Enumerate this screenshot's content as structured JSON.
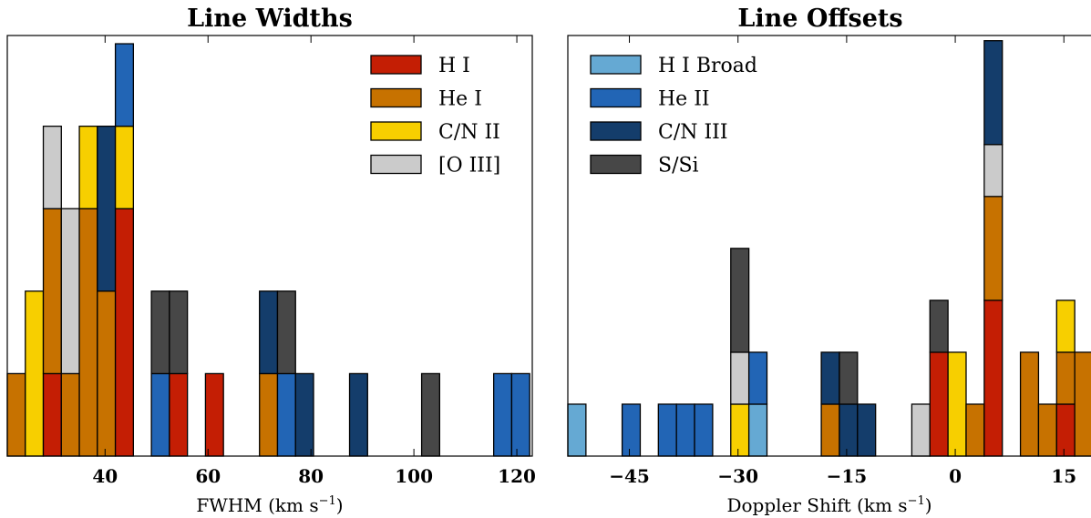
{
  "chart_data": [
    {
      "type": "bar",
      "stacked": true,
      "title": "Line Widths",
      "xlabel_main": "FWHM (km s",
      "xlabel_sup": "−1",
      "xlabel_end": ")",
      "xlim": [
        21,
        123
      ],
      "ylim": [
        0,
        5.1
      ],
      "bin_width": 3.5,
      "xticks": [
        40,
        60,
        80,
        100,
        120
      ],
      "legend_position": "upper-right",
      "series": [
        {
          "name": "H I",
          "color": "#c41e04"
        },
        {
          "name": "He I",
          "color": "#c77200"
        },
        {
          "name": "C/N II",
          "color": "#f7cf00"
        },
        {
          "name": "[O III]",
          "color": "#cbcbcb"
        },
        {
          "name": "",
          "color": "#2265b5"
        },
        {
          "name": "",
          "color": "#143d6b"
        },
        {
          "name": "",
          "color": "#474747"
        }
      ],
      "bins": [
        {
          "x": 21.0,
          "stack": [
            [
              "He I",
              1
            ]
          ]
        },
        {
          "x": 24.5,
          "stack": [
            [
              "C/N II",
              2
            ]
          ]
        },
        {
          "x": 28.0,
          "stack": [
            [
              "H I",
              1
            ],
            [
              "He I",
              2
            ],
            [
              "[O III]",
              1
            ]
          ]
        },
        {
          "x": 31.5,
          "stack": [
            [
              "He I",
              1
            ],
            [
              "[O III]",
              2
            ]
          ]
        },
        {
          "x": 35.0,
          "stack": [
            [
              "He I",
              3
            ],
            [
              "C/N II",
              1
            ]
          ]
        },
        {
          "x": 38.5,
          "stack": [
            [
              "He I",
              2
            ],
            [
              "S/Si-navy",
              2
            ]
          ]
        },
        {
          "x": 42.0,
          "stack": [
            [
              "H I",
              3
            ],
            [
              "C/N II",
              1
            ],
            [
              "blue",
              1
            ]
          ]
        },
        {
          "x": 49.0,
          "stack": [
            [
              "blue",
              1
            ],
            [
              "grey",
              1
            ]
          ]
        },
        {
          "x": 52.5,
          "stack": [
            [
              "H I",
              1
            ],
            [
              "grey",
              1
            ]
          ]
        },
        {
          "x": 59.5,
          "stack": [
            [
              "H I",
              1
            ]
          ]
        },
        {
          "x": 70.0,
          "stack": [
            [
              "He I",
              1
            ],
            [
              "navy",
              1
            ]
          ]
        },
        {
          "x": 73.5,
          "stack": [
            [
              "blue",
              1
            ],
            [
              "grey",
              1
            ]
          ]
        },
        {
          "x": 77.0,
          "stack": [
            [
              "navy",
              1
            ]
          ]
        },
        {
          "x": 87.5,
          "stack": [
            [
              "navy",
              1
            ]
          ]
        },
        {
          "x": 101.5,
          "stack": [
            [
              "grey",
              1
            ]
          ]
        },
        {
          "x": 115.5,
          "stack": [
            [
              "blue",
              1
            ]
          ]
        },
        {
          "x": 119.0,
          "stack": [
            [
              "blue",
              1
            ]
          ]
        }
      ]
    },
    {
      "type": "bar",
      "stacked": true,
      "title": "Line Offsets",
      "xlabel_main": "Doppler Shift (km s",
      "xlabel_sup": "−1",
      "xlabel_end": ")",
      "xlim": [
        -53.5,
        19.5
      ],
      "ylim": [
        0,
        8.1
      ],
      "bin_width": 2.5,
      "xticks": [
        -45,
        -30,
        -15,
        0,
        15
      ],
      "xtick_labels": [
        "−45",
        "−30",
        "−15",
        "0",
        "15"
      ],
      "legend_position": "upper-left",
      "series": [
        {
          "name": "H I Broad",
          "color": "#65a9d3"
        },
        {
          "name": "He II",
          "color": "#2265b5"
        },
        {
          "name": "C/N III",
          "color": "#143d6b"
        },
        {
          "name": "S/Si",
          "color": "#474747"
        },
        {
          "name": "",
          "color": "#c41e04"
        },
        {
          "name": "",
          "color": "#c77200"
        },
        {
          "name": "",
          "color": "#f7cf00"
        },
        {
          "name": "",
          "color": "#cbcbcb"
        }
      ],
      "bins": [
        {
          "x": -53.5,
          "stack": [
            [
              "H I Broad",
              1
            ]
          ]
        },
        {
          "x": -46.0,
          "stack": [
            [
              "He II",
              1
            ]
          ]
        },
        {
          "x": -41.0,
          "stack": [
            [
              "He II",
              1
            ]
          ]
        },
        {
          "x": -38.5,
          "stack": [
            [
              "He II",
              1
            ]
          ]
        },
        {
          "x": -36.0,
          "stack": [
            [
              "He II",
              1
            ]
          ]
        },
        {
          "x": -31.0,
          "stack": [
            [
              "C/N II",
              1
            ],
            [
              "[O III]",
              1
            ],
            [
              "S/Si",
              2
            ]
          ]
        },
        {
          "x": -28.5,
          "stack": [
            [
              "H I Broad",
              1
            ],
            [
              "He II",
              1
            ]
          ]
        },
        {
          "x": -18.5,
          "stack": [
            [
              "He I",
              1
            ],
            [
              "C/N III",
              1
            ]
          ]
        },
        {
          "x": -16.0,
          "stack": [
            [
              "C/N III",
              1
            ],
            [
              "S/Si",
              1
            ]
          ]
        },
        {
          "x": -13.5,
          "stack": [
            [
              "C/N III",
              1
            ]
          ]
        },
        {
          "x": -6.0,
          "stack": [
            [
              "[O III]",
              1
            ]
          ]
        },
        {
          "x": -3.5,
          "stack": [
            [
              "H I",
              2
            ],
            [
              "S/Si",
              1
            ]
          ]
        },
        {
          "x": -1.0,
          "stack": [
            [
              "C/N II",
              2
            ]
          ]
        },
        {
          "x": 1.5,
          "stack": [
            [
              "He I",
              1
            ]
          ]
        },
        {
          "x": 4.0,
          "stack": [
            [
              "H I",
              3
            ],
            [
              "He I",
              2
            ],
            [
              "[O III]",
              1
            ],
            [
              "C/N III",
              2
            ]
          ]
        },
        {
          "x": 9.0,
          "stack": [
            [
              "He I",
              2
            ]
          ]
        },
        {
          "x": 11.5,
          "stack": [
            [
              "He I",
              1
            ]
          ]
        },
        {
          "x": 14.0,
          "stack": [
            [
              "H I",
              1
            ],
            [
              "He I",
              1
            ],
            [
              "C/N II",
              1
            ]
          ]
        },
        {
          "x": 16.5,
          "stack": [
            [
              "He I",
              2
            ]
          ]
        }
      ]
    }
  ]
}
